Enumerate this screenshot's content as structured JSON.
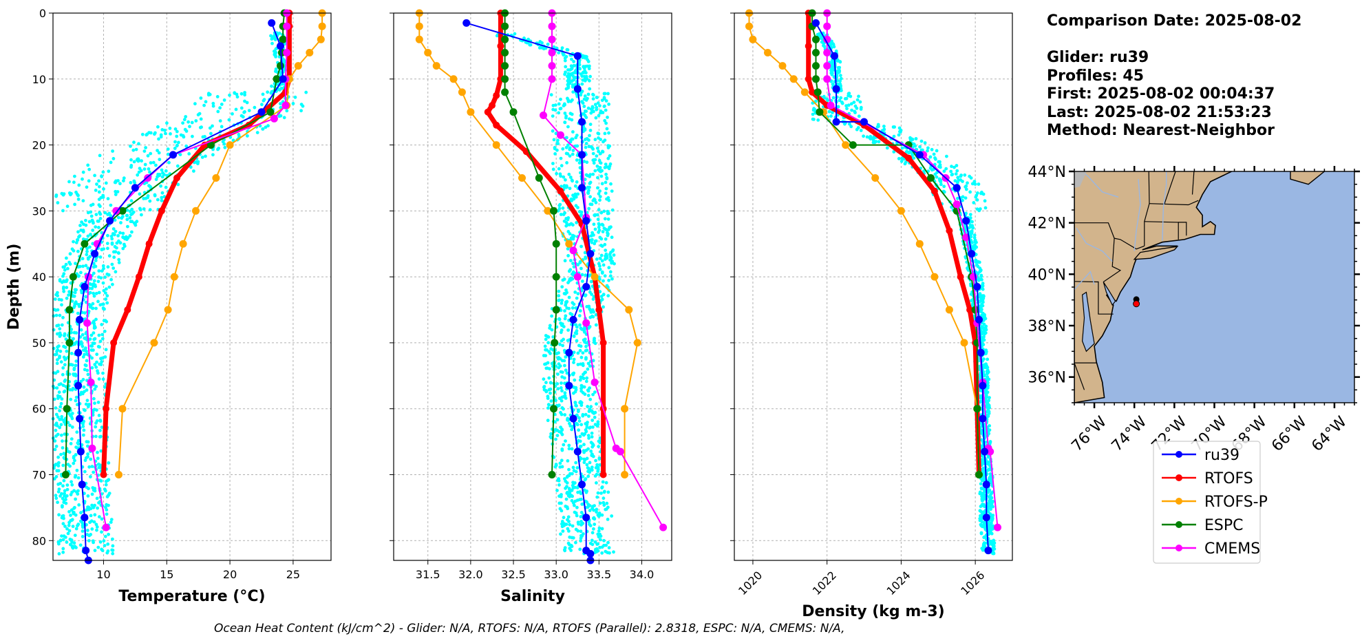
{
  "info": {
    "lines": [
      "Comparison Date: 2025-08-02",
      "",
      "Glider: ru39",
      "Profiles: 45",
      "First: 2025-08-02 00:04:37",
      "Last: 2025-08-02 21:53:23",
      "Method: Nearest-Neighbor"
    ]
  },
  "footer": "Ocean Heat Content (kJ/cm^2) - Glider: N/A,  RTOFS: N/A,  RTOFS (Parallel): 2.8318,  ESPC: N/A,  CMEMS: N/A,",
  "colors": {
    "glider_cloud": "#00ffff",
    "ru39": "#0000ff",
    "RTOFS": "#ff0000",
    "RTOFS-P": "#ffa500",
    "ESPC": "#008000",
    "CMEMS": "#ff00ff",
    "land": "#d2b48c",
    "ocean": "#9ab7e3",
    "grid": "#b0b0b0"
  },
  "chart_data": [
    {
      "type": "line",
      "xlabel": "Temperature (°C)",
      "ylabel": "Depth (m)",
      "xlim": [
        6,
        28
      ],
      "ylim": [
        83,
        0
      ],
      "xticks": [
        10,
        15,
        20,
        25
      ],
      "yticks": [
        0,
        10,
        20,
        30,
        40,
        50,
        60,
        70,
        80
      ],
      "grid": true,
      "series": [
        {
          "name": "ru39",
          "x": [
            23.3,
            24.0,
            24.2,
            22.5,
            15.5,
            12.5,
            10.5,
            9.3,
            8.5,
            8.1,
            8.0,
            8.0,
            8.1,
            8.2,
            8.3,
            8.5,
            8.6,
            8.8
          ],
          "depth": [
            1.5,
            5,
            10,
            15,
            21.5,
            26.5,
            31.5,
            36.5,
            41.5,
            46.5,
            51.5,
            56.5,
            61.5,
            66.5,
            71.5,
            76.5,
            81.5,
            83
          ]
        },
        {
          "name": "RTOFS",
          "x": [
            24.7,
            24.7,
            24.7,
            24.4,
            21.5,
            18.0,
            15.8,
            14.6,
            13.6,
            12.8,
            11.9,
            10.8,
            10.2,
            10.0
          ],
          "depth": [
            0,
            2,
            10,
            12,
            17,
            20,
            25,
            30,
            35,
            40,
            45,
            50,
            60,
            70
          ]
        },
        {
          "name": "RTOFS-P",
          "x": [
            27.3,
            27.3,
            27.2,
            26.3,
            25.4,
            24.7,
            24.5,
            20.0,
            18.9,
            17.3,
            16.3,
            15.6,
            15.1,
            14.0,
            11.5,
            11.2
          ],
          "depth": [
            0,
            2,
            4,
            6,
            8,
            10,
            14,
            20,
            25,
            30,
            35,
            40,
            45,
            50,
            60,
            70
          ]
        },
        {
          "name": "ESPC",
          "x": [
            24.3,
            24.2,
            24.2,
            24.1,
            24.0,
            23.7,
            23.2,
            18.5,
            11.5,
            8.5,
            7.6,
            7.3,
            7.3,
            7.1,
            7.0
          ],
          "depth": [
            0,
            2,
            4,
            6,
            8,
            10,
            15,
            20,
            30,
            35,
            40,
            45,
            50,
            60,
            70
          ]
        },
        {
          "name": "CMEMS",
          "x": [
            24.5,
            24.5,
            24.5,
            24.4,
            24.4,
            23.5,
            15.5,
            13.5,
            11.0,
            9.5,
            8.8,
            8.7,
            9.0,
            9.1,
            10.2
          ],
          "depth": [
            0,
            2,
            6,
            10,
            14,
            16,
            21.5,
            25,
            30,
            35,
            40,
            47,
            56,
            66,
            78
          ]
        }
      ]
    },
    {
      "type": "line",
      "xlabel": "Salinity",
      "ylabel": "",
      "xlim": [
        31.1,
        34.35
      ],
      "ylim": [
        83,
        0
      ],
      "xticks": [
        31.5,
        32.0,
        32.5,
        33.0,
        33.5,
        34.0
      ],
      "yticks": [
        0,
        10,
        20,
        30,
        40,
        50,
        60,
        70,
        80
      ],
      "grid": true,
      "series": [
        {
          "name": "ru39",
          "x": [
            31.95,
            33.25,
            33.25,
            33.3,
            33.3,
            33.3,
            33.35,
            33.4,
            33.35,
            33.2,
            33.15,
            33.15,
            33.2,
            33.25,
            33.3,
            33.35,
            33.35,
            33.4,
            33.4
          ],
          "depth": [
            1.5,
            6.5,
            11.5,
            16.5,
            21.5,
            26.5,
            31.5,
            36.5,
            41.5,
            46.5,
            51.5,
            56.5,
            61.5,
            66.5,
            71.5,
            76.5,
            81.5,
            82,
            83
          ]
        },
        {
          "name": "RTOFS",
          "x": [
            32.35,
            32.35,
            32.35,
            32.3,
            32.25,
            32.2,
            32.3,
            32.65,
            33.05,
            33.3,
            33.45,
            33.5,
            33.55,
            33.55,
            33.55
          ],
          "depth": [
            0,
            5,
            10,
            12.5,
            14,
            15,
            17,
            21,
            27,
            32,
            40,
            45,
            50,
            60,
            70
          ]
        },
        {
          "name": "RTOFS-P",
          "x": [
            31.4,
            31.4,
            31.4,
            31.5,
            31.6,
            31.8,
            31.9,
            32.0,
            32.3,
            32.6,
            32.9,
            33.15,
            33.45,
            33.85,
            33.95,
            33.8,
            33.8
          ],
          "depth": [
            0,
            2,
            4,
            6,
            8,
            10,
            12,
            15,
            20,
            25,
            30,
            35,
            40,
            45,
            50,
            60,
            70
          ]
        },
        {
          "name": "ESPC",
          "x": [
            32.4,
            32.4,
            32.4,
            32.4,
            32.4,
            32.4,
            32.4,
            32.5,
            32.8,
            32.97,
            33.0,
            33.0,
            33.0,
            32.98,
            32.97,
            32.95
          ],
          "depth": [
            0,
            2,
            4,
            6,
            8,
            10,
            12,
            15,
            25,
            30,
            35,
            40,
            45,
            50,
            60,
            70
          ]
        },
        {
          "name": "CMEMS",
          "x": [
            32.95,
            32.95,
            32.95,
            32.95,
            32.95,
            32.95,
            32.85,
            33.05,
            33.3,
            33.35,
            33.2,
            33.25,
            33.35,
            33.45,
            33.7,
            33.75,
            34.25
          ],
          "depth": [
            0,
            2,
            4,
            6,
            8,
            10,
            15.5,
            18.5,
            21.5,
            31,
            36,
            40,
            47,
            56,
            66,
            66.5,
            78
          ]
        }
      ]
    },
    {
      "type": "line",
      "xlabel": "Density (kg m-3)",
      "ylabel": "",
      "xlim": [
        1019.5,
        1027.0
      ],
      "ylim": [
        83,
        0
      ],
      "xticks": [
        1020,
        1022,
        1024,
        1026
      ],
      "yticks": [
        0,
        10,
        20,
        30,
        40,
        50,
        60,
        70,
        80
      ],
      "grid": true,
      "series": [
        {
          "name": "ru39",
          "x": [
            1021.7,
            1022.2,
            1022.25,
            1022.25,
            1023.0,
            1024.5,
            1025.5,
            1025.75,
            1025.9,
            1026.05,
            1026.1,
            1026.15,
            1026.2,
            1026.2,
            1026.25,
            1026.3,
            1026.3,
            1026.35
          ],
          "depth": [
            1.5,
            6.5,
            11.5,
            16.5,
            16.5,
            21.5,
            26.5,
            31.5,
            36.5,
            41.5,
            46.5,
            51.5,
            56.5,
            61.5,
            66.5,
            71.5,
            76.5,
            81.5
          ]
        },
        {
          "name": "RTOFS",
          "x": [
            1021.5,
            1021.5,
            1021.5,
            1021.6,
            1022.0,
            1023.0,
            1024.2,
            1024.9,
            1025.3,
            1025.6,
            1025.85,
            1026.0,
            1026.05,
            1026.1
          ],
          "depth": [
            0,
            5,
            10,
            12,
            14,
            17,
            22,
            27,
            33,
            40,
            45,
            50,
            60,
            70
          ]
        },
        {
          "name": "RTOFS-P",
          "x": [
            1019.9,
            1019.9,
            1020.0,
            1020.4,
            1020.8,
            1021.1,
            1021.4,
            1021.9,
            1022.5,
            1023.3,
            1024.0,
            1024.5,
            1024.9,
            1025.3,
            1025.7,
            1026.05,
            1026.1
          ],
          "depth": [
            0,
            2,
            4,
            6,
            8,
            10,
            12,
            15,
            20,
            25,
            30,
            35,
            40,
            45,
            50,
            60,
            70
          ]
        },
        {
          "name": "ESPC",
          "x": [
            1021.6,
            1021.6,
            1021.7,
            1021.7,
            1021.7,
            1021.7,
            1021.75,
            1021.8,
            1022.7,
            1024.2,
            1024.8,
            1025.5,
            1025.9,
            1026.0,
            1026.05,
            1026.05,
            1026.1
          ],
          "depth": [
            0,
            2,
            4,
            6,
            8,
            10,
            12,
            15,
            20,
            20,
            25,
            30,
            40,
            45,
            50,
            60,
            70
          ]
        },
        {
          "name": "CMEMS",
          "x": [
            1022.0,
            1022.0,
            1022.0,
            1022.0,
            1022.0,
            1022.0,
            1022.1,
            1024.6,
            1025.2,
            1025.5,
            1025.75,
            1025.95,
            1026.05,
            1026.2,
            1026.35,
            1026.4,
            1026.6
          ],
          "depth": [
            0,
            2,
            4,
            6,
            8,
            10,
            14,
            21.5,
            25,
            29,
            34,
            40,
            47,
            56,
            66,
            66.5,
            78
          ]
        }
      ]
    },
    {
      "type": "map",
      "lon_range": [
        -77,
        -63
      ],
      "lat_range": [
        35,
        44
      ],
      "xticks": [
        "76°W",
        "74°W",
        "72°W",
        "70°W",
        "68°W",
        "66°W",
        "64°W"
      ],
      "yticks": [
        "36°N",
        "38°N",
        "40°N",
        "42°N",
        "44°N"
      ],
      "glider_location": {
        "lon": -73.9,
        "lat": 38.9
      }
    }
  ],
  "legend": {
    "placement": "below-map",
    "entries": [
      "ru39",
      "RTOFS",
      "RTOFS-P",
      "ESPC",
      "CMEMS"
    ]
  }
}
